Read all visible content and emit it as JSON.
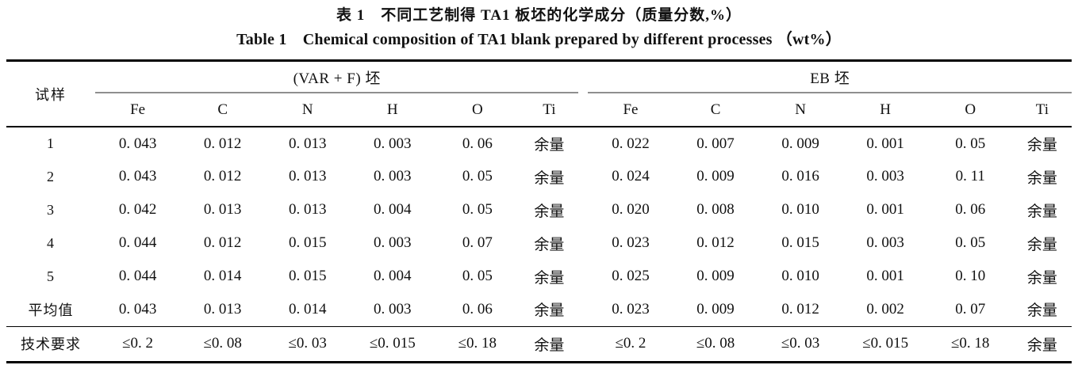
{
  "colors": {
    "background": "#ffffff",
    "text": "#111111",
    "heavy_rule": "#000000",
    "group_rule": "#8f8f8f"
  },
  "titles": {
    "zh": "表 1　不同工艺制得 TA1 板坯的化学成分（质量分数,%）",
    "en": "Table 1　Chemical composition of TA1 blank prepared by different processes （wt%）"
  },
  "table": {
    "corner_header": "试样",
    "groups": [
      {
        "label": "(VAR + F) 坯",
        "columns": [
          "Fe",
          "C",
          "N",
          "H",
          "O",
          "Ti"
        ]
      },
      {
        "label": "EB 坯",
        "columns": [
          "Fe",
          "C",
          "N",
          "H",
          "O",
          "Ti"
        ]
      }
    ],
    "rows": [
      {
        "cells": [
          "1",
          "0. 043",
          "0. 012",
          "0. 013",
          "0. 003",
          "0. 06",
          "余量",
          "0. 022",
          "0. 007",
          "0. 009",
          "0. 001",
          "0. 05",
          "余量"
        ]
      },
      {
        "cells": [
          "2",
          "0. 043",
          "0. 012",
          "0. 013",
          "0. 003",
          "0. 05",
          "余量",
          "0. 024",
          "0. 009",
          "0. 016",
          "0. 003",
          "0. 11",
          "余量"
        ]
      },
      {
        "cells": [
          "3",
          "0. 042",
          "0. 013",
          "0. 013",
          "0. 004",
          "0. 05",
          "余量",
          "0. 020",
          "0. 008",
          "0. 010",
          "0. 001",
          "0. 06",
          "余量"
        ]
      },
      {
        "cells": [
          "4",
          "0. 044",
          "0. 012",
          "0. 015",
          "0. 003",
          "0. 07",
          "余量",
          "0. 023",
          "0. 012",
          "0. 015",
          "0. 003",
          "0. 05",
          "余量"
        ]
      },
      {
        "cells": [
          "5",
          "0. 044",
          "0. 014",
          "0. 015",
          "0. 004",
          "0. 05",
          "余量",
          "0. 025",
          "0. 009",
          "0. 010",
          "0. 001",
          "0. 10",
          "余量"
        ]
      },
      {
        "cells": [
          "平均值",
          "0. 043",
          "0. 013",
          "0. 014",
          "0. 003",
          "0. 06",
          "余量",
          "0. 023",
          "0. 009",
          "0. 012",
          "0. 002",
          "0. 07",
          "余量"
        ]
      },
      {
        "cells": [
          "技术要求",
          "≤0. 2",
          "≤0. 08",
          "≤0. 03",
          "≤0. 015",
          "≤0. 18",
          "余量",
          "≤0. 2",
          "≤0. 08",
          "≤0. 03",
          "≤0. 015",
          "≤0. 18",
          "余量"
        ]
      }
    ]
  }
}
